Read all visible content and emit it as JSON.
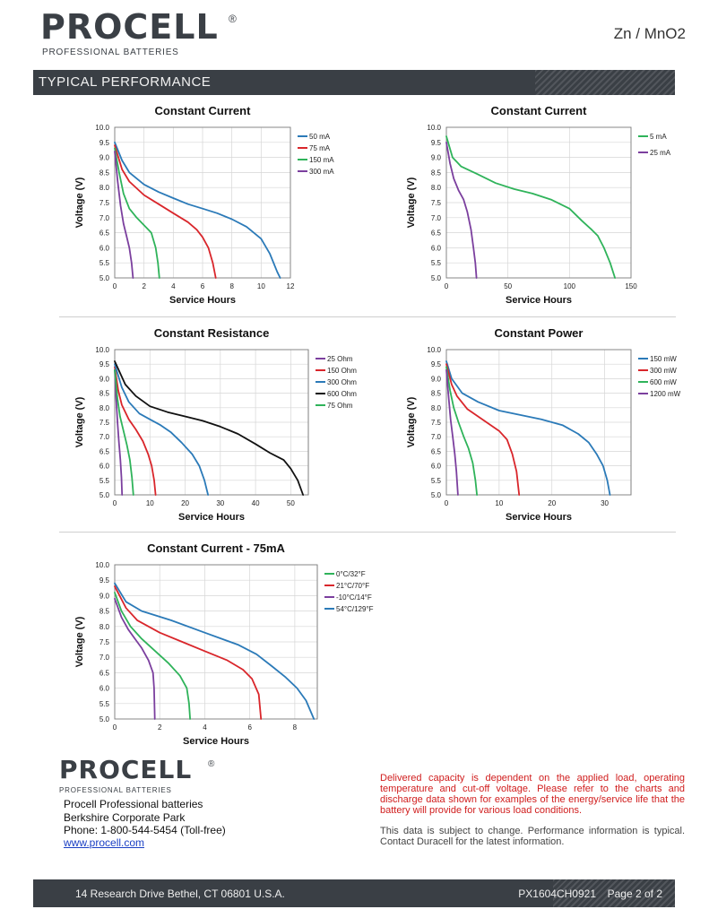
{
  "header": {
    "brand": "PROCELL",
    "registered": "®",
    "tagline": "PROFESSIONAL BATTERIES",
    "chemistry": "Zn / MnO2",
    "section_title": "TYPICAL  PERFORMANCE"
  },
  "footer": {
    "brand": "PROCELL",
    "registered": "®",
    "tagline": "PROFESSIONAL BATTERIES",
    "company": "Procell Professional batteries",
    "park": "Berkshire Corporate Park",
    "phone": "Phone: 1-800-544-5454 (Toll-free)",
    "website": "www.procell.com",
    "note_capacity": "Delivered capacity is dependent on the applied load, operating temperature and cut-off voltage. Please refer to the charts and discharge data shown for examples of the energy/service life that the battery will provide for various load conditions.",
    "note_change": "This data is subject to change. Performance information is typical. Contact Duracell for the latest information.",
    "address": "14 Research Drive Bethel, CT 06801 U.S.A.",
    "doc_id": "PX1604CH0921",
    "page": "Page 2 of 2"
  },
  "colors": {
    "header_bar": "#3a3f45",
    "purple": "#7b3f9e",
    "red": "#d9262b",
    "green": "#2fb35a",
    "blue": "#2b7ab8",
    "black": "#111111",
    "note_red": "#d01c1c"
  },
  "chart_data": [
    {
      "id": "cc-ma-low",
      "type": "line",
      "title": "Constant Current",
      "xlabel": "Service Hours",
      "ylabel": "Voltage (V)",
      "xlim": [
        0,
        12
      ],
      "ylim": [
        5.0,
        10.0
      ],
      "xticks": [
        0,
        2,
        4,
        6,
        8,
        10,
        12
      ],
      "yticks": [
        5.0,
        5.5,
        6.0,
        6.5,
        7.0,
        7.5,
        8.0,
        8.5,
        9.0,
        9.5,
        10.0
      ],
      "grid": true,
      "legend": "right",
      "series": [
        {
          "name": "50 mA",
          "color": "#2b7ab8",
          "points": [
            [
              0,
              9.5
            ],
            [
              0.5,
              8.9
            ],
            [
              1,
              8.5
            ],
            [
              2,
              8.1
            ],
            [
              3,
              7.85
            ],
            [
              4,
              7.65
            ],
            [
              5,
              7.45
            ],
            [
              6,
              7.3
            ],
            [
              7,
              7.15
            ],
            [
              8,
              6.95
            ],
            [
              9,
              6.7
            ],
            [
              10,
              6.3
            ],
            [
              10.6,
              5.8
            ],
            [
              11.1,
              5.2
            ],
            [
              11.3,
              5.0
            ]
          ]
        },
        {
          "name": "75 mA",
          "color": "#d9262b",
          "points": [
            [
              0,
              9.4
            ],
            [
              0.5,
              8.6
            ],
            [
              1,
              8.2
            ],
            [
              2,
              7.75
            ],
            [
              3,
              7.45
            ],
            [
              4,
              7.15
            ],
            [
              5,
              6.85
            ],
            [
              5.6,
              6.6
            ],
            [
              6,
              6.35
            ],
            [
              6.4,
              6.0
            ],
            [
              6.7,
              5.5
            ],
            [
              6.9,
              5.0
            ]
          ]
        },
        {
          "name": "150 mA",
          "color": "#2fb35a",
          "points": [
            [
              0,
              9.3
            ],
            [
              0.3,
              8.5
            ],
            [
              0.6,
              7.8
            ],
            [
              1,
              7.3
            ],
            [
              1.5,
              7.0
            ],
            [
              2,
              6.75
            ],
            [
              2.5,
              6.5
            ],
            [
              2.8,
              6.0
            ],
            [
              2.95,
              5.5
            ],
            [
              3.05,
              5.0
            ]
          ]
        },
        {
          "name": "300 mA",
          "color": "#7b3f9e",
          "points": [
            [
              0,
              9.2
            ],
            [
              0.2,
              8.2
            ],
            [
              0.4,
              7.4
            ],
            [
              0.6,
              6.8
            ],
            [
              0.8,
              6.4
            ],
            [
              1.0,
              6.0
            ],
            [
              1.15,
              5.5
            ],
            [
              1.25,
              5.0
            ]
          ]
        }
      ]
    },
    {
      "id": "cc-ma-very-low",
      "type": "line",
      "title": "Constant Current",
      "xlabel": "Service Hours",
      "ylabel": "Voltage (V)",
      "xlim": [
        0,
        150
      ],
      "ylim": [
        5.0,
        10.0
      ],
      "xticks": [
        0,
        50,
        100,
        150
      ],
      "yticks": [
        5.0,
        5.5,
        6.0,
        6.5,
        7.0,
        7.5,
        8.0,
        8.5,
        9.0,
        9.5,
        10.0
      ],
      "grid": true,
      "legend": "right",
      "series": [
        {
          "name": "5 mA",
          "color": "#2fb35a",
          "points": [
            [
              0,
              9.7
            ],
            [
              5,
              9.0
            ],
            [
              12,
              8.7
            ],
            [
              25,
              8.45
            ],
            [
              40,
              8.15
            ],
            [
              55,
              7.95
            ],
            [
              70,
              7.8
            ],
            [
              85,
              7.6
            ],
            [
              100,
              7.3
            ],
            [
              110,
              6.9
            ],
            [
              118,
              6.6
            ],
            [
              123,
              6.4
            ],
            [
              128,
              6.0
            ],
            [
              133,
              5.5
            ],
            [
              137,
              5.0
            ]
          ]
        },
        {
          "name": "25 mA",
          "color": "#7b3f9e",
          "points": [
            [
              0,
              9.5
            ],
            [
              3,
              8.8
            ],
            [
              6,
              8.3
            ],
            [
              10,
              7.9
            ],
            [
              14,
              7.6
            ],
            [
              17,
              7.2
            ],
            [
              20,
              6.6
            ],
            [
              22,
              6.0
            ],
            [
              23.5,
              5.5
            ],
            [
              24.5,
              5.0
            ]
          ]
        }
      ]
    },
    {
      "id": "cr-ohm",
      "type": "line",
      "title": "Constant Resistance",
      "xlabel": "Service Hours",
      "ylabel": "Voltage (V)",
      "xlim": [
        0,
        55
      ],
      "ylim": [
        5.0,
        10.0
      ],
      "xticks": [
        0,
        10,
        20,
        30,
        40,
        50
      ],
      "yticks": [
        5.0,
        5.5,
        6.0,
        6.5,
        7.0,
        7.5,
        8.0,
        8.5,
        9.0,
        9.5,
        10.0
      ],
      "grid": true,
      "legend": "right",
      "series": [
        {
          "name": "25 Ohm",
          "color": "#7b3f9e",
          "points": [
            [
              0,
              9.3
            ],
            [
              0.4,
              8.3
            ],
            [
              0.8,
              7.5
            ],
            [
              1.2,
              6.8
            ],
            [
              1.6,
              6.2
            ],
            [
              1.9,
              5.6
            ],
            [
              2.1,
              5.0
            ]
          ]
        },
        {
          "name": "150 Ohm",
          "color": "#d9262b",
          "points": [
            [
              0,
              9.4
            ],
            [
              1,
              8.6
            ],
            [
              2,
              8.1
            ],
            [
              4,
              7.6
            ],
            [
              6,
              7.25
            ],
            [
              8,
              6.85
            ],
            [
              9.5,
              6.4
            ],
            [
              10.5,
              6.0
            ],
            [
              11.2,
              5.5
            ],
            [
              11.6,
              5.0
            ]
          ]
        },
        {
          "name": "300 Ohm",
          "color": "#2b7ab8",
          "points": [
            [
              0,
              9.5
            ],
            [
              2,
              8.7
            ],
            [
              4,
              8.2
            ],
            [
              7,
              7.8
            ],
            [
              10,
              7.6
            ],
            [
              13,
              7.4
            ],
            [
              16,
              7.15
            ],
            [
              19,
              6.8
            ],
            [
              22,
              6.4
            ],
            [
              24,
              6.0
            ],
            [
              25.5,
              5.5
            ],
            [
              26.5,
              5.0
            ]
          ]
        },
        {
          "name": "600 Ohm",
          "color": "#111111",
          "points": [
            [
              0,
              9.6
            ],
            [
              3,
              8.8
            ],
            [
              6,
              8.4
            ],
            [
              10,
              8.05
            ],
            [
              15,
              7.85
            ],
            [
              20,
              7.7
            ],
            [
              25,
              7.55
            ],
            [
              30,
              7.35
            ],
            [
              35,
              7.1
            ],
            [
              40,
              6.75
            ],
            [
              44,
              6.45
            ],
            [
              48,
              6.2
            ],
            [
              50,
              5.9
            ],
            [
              52,
              5.5
            ],
            [
              53.5,
              5.0
            ]
          ]
        },
        {
          "name": "75 Ohm",
          "color": "#2fb35a",
          "points": [
            [
              0,
              9.3
            ],
            [
              0.8,
              8.3
            ],
            [
              1.5,
              7.7
            ],
            [
              2.5,
              7.2
            ],
            [
              3.5,
              6.7
            ],
            [
              4.3,
              6.2
            ],
            [
              4.9,
              5.6
            ],
            [
              5.3,
              5.0
            ]
          ]
        }
      ]
    },
    {
      "id": "cp-mw",
      "type": "line",
      "title": "Constant Power",
      "xlabel": "Service Hours",
      "ylabel": "Voltage (V)",
      "xlim": [
        0,
        35
      ],
      "ylim": [
        5.0,
        10.0
      ],
      "xticks": [
        0,
        10,
        20,
        30
      ],
      "yticks": [
        5.0,
        5.5,
        6.0,
        6.5,
        7.0,
        7.5,
        8.0,
        8.5,
        9.0,
        9.5,
        10.0
      ],
      "grid": true,
      "legend": "right",
      "series": [
        {
          "name": "150 mW",
          "color": "#2b7ab8",
          "points": [
            [
              0,
              9.6
            ],
            [
              1,
              9.0
            ],
            [
              3,
              8.5
            ],
            [
              6,
              8.2
            ],
            [
              10,
              7.9
            ],
            [
              14,
              7.75
            ],
            [
              18,
              7.6
            ],
            [
              22,
              7.4
            ],
            [
              25,
              7.1
            ],
            [
              27,
              6.8
            ],
            [
              28.5,
              6.4
            ],
            [
              29.7,
              6.0
            ],
            [
              30.5,
              5.5
            ],
            [
              31,
              5.0
            ]
          ]
        },
        {
          "name": "300 mW",
          "color": "#d9262b",
          "points": [
            [
              0,
              9.5
            ],
            [
              1,
              8.8
            ],
            [
              2,
              8.4
            ],
            [
              4,
              7.95
            ],
            [
              6,
              7.7
            ],
            [
              8,
              7.45
            ],
            [
              10,
              7.2
            ],
            [
              11.5,
              6.9
            ],
            [
              12.5,
              6.4
            ],
            [
              13.3,
              5.8
            ],
            [
              13.8,
              5.0
            ]
          ]
        },
        {
          "name": "600 mW",
          "color": "#2fb35a",
          "points": [
            [
              0,
              9.4
            ],
            [
              0.7,
              8.6
            ],
            [
              1.4,
              8.0
            ],
            [
              2.3,
              7.5
            ],
            [
              3.3,
              7.0
            ],
            [
              4.2,
              6.6
            ],
            [
              5,
              6.1
            ],
            [
              5.5,
              5.5
            ],
            [
              5.8,
              5.0
            ]
          ]
        },
        {
          "name": "1200 mW",
          "color": "#7b3f9e",
          "points": [
            [
              0,
              9.3
            ],
            [
              0.4,
              8.4
            ],
            [
              0.8,
              7.6
            ],
            [
              1.2,
              7.0
            ],
            [
              1.6,
              6.4
            ],
            [
              1.9,
              5.8
            ],
            [
              2.2,
              5.0
            ]
          ]
        }
      ]
    },
    {
      "id": "cc-75ma-temp",
      "type": "line",
      "title": "Constant Current - 75mA",
      "xlabel": "Service Hours",
      "ylabel": "Voltage (V)",
      "xlim": [
        0,
        9
      ],
      "ylim": [
        5.0,
        10.0
      ],
      "xticks": [
        0,
        2,
        4,
        6,
        8
      ],
      "yticks": [
        5.0,
        5.5,
        6.0,
        6.5,
        7.0,
        7.5,
        8.0,
        8.5,
        9.0,
        9.5,
        10.0
      ],
      "grid": true,
      "legend": "right",
      "series": [
        {
          "name": "0°C/32°F",
          "color": "#2fb35a",
          "points": [
            [
              0,
              9.1
            ],
            [
              0.3,
              8.5
            ],
            [
              0.7,
              8.0
            ],
            [
              1.2,
              7.6
            ],
            [
              1.8,
              7.2
            ],
            [
              2.4,
              6.8
            ],
            [
              2.9,
              6.4
            ],
            [
              3.2,
              6.0
            ],
            [
              3.3,
              5.5
            ],
            [
              3.35,
              5.0
            ]
          ]
        },
        {
          "name": "21°C/70°F",
          "color": "#d9262b",
          "points": [
            [
              0,
              9.3
            ],
            [
              0.5,
              8.6
            ],
            [
              1,
              8.2
            ],
            [
              2,
              7.8
            ],
            [
              3,
              7.5
            ],
            [
              4,
              7.2
            ],
            [
              5,
              6.9
            ],
            [
              5.7,
              6.6
            ],
            [
              6.1,
              6.3
            ],
            [
              6.4,
              5.8
            ],
            [
              6.5,
              5.0
            ]
          ]
        },
        {
          "name": "-10°C/14°F",
          "color": "#7b3f9e",
          "points": [
            [
              0,
              8.9
            ],
            [
              0.3,
              8.3
            ],
            [
              0.6,
              7.9
            ],
            [
              0.9,
              7.6
            ],
            [
              1.2,
              7.3
            ],
            [
              1.5,
              6.9
            ],
            [
              1.7,
              6.5
            ],
            [
              1.75,
              6.0
            ],
            [
              1.78,
              5.0
            ]
          ]
        },
        {
          "name": "54°C/129°F",
          "color": "#2b7ab8",
          "points": [
            [
              0,
              9.4
            ],
            [
              0.5,
              8.8
            ],
            [
              1.2,
              8.5
            ],
            [
              2.5,
              8.2
            ],
            [
              4,
              7.8
            ],
            [
              5.5,
              7.4
            ],
            [
              6.3,
              7.1
            ],
            [
              7,
              6.7
            ],
            [
              7.6,
              6.35
            ],
            [
              8.1,
              6.0
            ],
            [
              8.5,
              5.6
            ],
            [
              8.85,
              5.0
            ]
          ]
        }
      ]
    }
  ]
}
